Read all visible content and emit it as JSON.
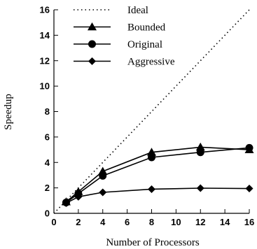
{
  "chart_data": {
    "type": "line",
    "title": "",
    "xlabel": "Number of Processors",
    "ylabel": "Speedup",
    "xlim": [
      0,
      16
    ],
    "ylim": [
      0,
      16
    ],
    "xticks": [
      0,
      2,
      4,
      6,
      8,
      10,
      12,
      14,
      16
    ],
    "yticks": [
      0,
      2,
      4,
      6,
      8,
      10,
      12,
      14,
      16
    ],
    "grid": false,
    "legend_position": "top-left",
    "series": [
      {
        "name": "Ideal",
        "style": "dotted",
        "marker": "none",
        "x": [
          0,
          16
        ],
        "y": [
          0,
          16
        ]
      },
      {
        "name": "Bounded",
        "style": "solid",
        "marker": "triangle",
        "x": [
          1,
          2,
          4,
          8,
          12,
          16
        ],
        "y": [
          0.9,
          1.7,
          3.3,
          4.8,
          5.2,
          5.0
        ]
      },
      {
        "name": "Original",
        "style": "solid",
        "marker": "circle",
        "x": [
          1,
          2,
          4,
          8,
          12,
          16
        ],
        "y": [
          0.85,
          1.55,
          2.95,
          4.4,
          4.8,
          5.15
        ]
      },
      {
        "name": "Aggressive",
        "style": "solid",
        "marker": "diamond",
        "x": [
          1,
          2,
          4,
          8,
          12,
          16
        ],
        "y": [
          0.8,
          1.3,
          1.65,
          1.9,
          1.98,
          1.95
        ]
      }
    ]
  }
}
